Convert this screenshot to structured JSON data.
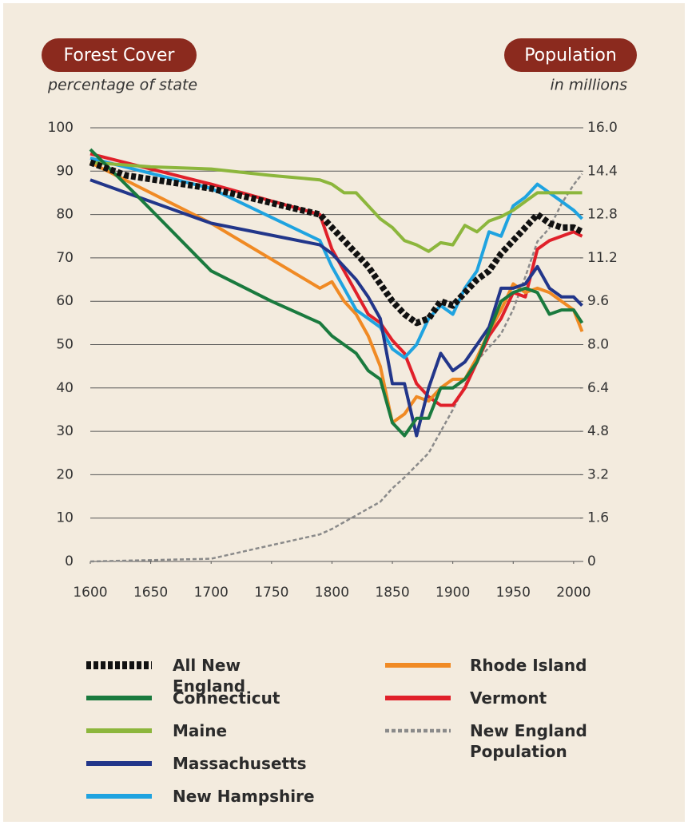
{
  "chart_data": {
    "type": "line",
    "title": "Forest Cover",
    "subtitle": "percentage of state",
    "y2_title": "Population",
    "y2_subtitle": "in millions",
    "xlim": [
      1600,
      2010
    ],
    "xticks": [
      1600,
      1650,
      1700,
      1750,
      1800,
      1850,
      1900,
      1950,
      2000
    ],
    "ylim": [
      0,
      100
    ],
    "yticks": [
      0,
      10,
      20,
      30,
      40,
      50,
      60,
      70,
      80,
      90,
      100
    ],
    "y2lim": [
      0,
      16
    ],
    "y2ticks": [
      0,
      1.6,
      3.2,
      4.8,
      6.4,
      {
        "value": 8,
        "label": "8.0"
      },
      9.6,
      11.2,
      12.8,
      14.4,
      {
        "value": 16,
        "label": "16.0"
      }
    ],
    "grid": true,
    "series": [
      {
        "name": "All New England",
        "color": "#111111",
        "dash": "dotted",
        "x": [
          1600,
          1630,
          1700,
          1790,
          1800,
          1810,
          1820,
          1830,
          1840,
          1850,
          1860,
          1870,
          1880,
          1890,
          1900,
          1910,
          1920,
          1930,
          1940,
          1950,
          1960,
          1970,
          1980,
          1990,
          2000,
          2007
        ],
        "values": [
          92,
          89,
          86,
          80,
          77,
          74,
          71,
          68,
          64,
          60,
          57,
          55,
          56,
          60,
          59,
          62,
          65,
          67,
          71,
          74,
          77,
          80,
          78,
          77,
          77,
          76
        ]
      },
      {
        "name": "Connecticut",
        "color": "#1a7a3e",
        "x": [
          1600,
          1640,
          1700,
          1750,
          1790,
          1800,
          1820,
          1830,
          1840,
          1850,
          1860,
          1870,
          1880,
          1890,
          1900,
          1910,
          1920,
          1930,
          1940,
          1950,
          1960,
          1970,
          1980,
          1990,
          2000,
          2007
        ],
        "values": [
          95,
          84,
          67,
          60,
          55,
          52,
          48,
          44,
          42,
          32,
          29,
          33,
          33,
          40,
          40,
          42,
          46,
          53,
          60,
          62,
          63,
          62,
          57,
          58,
          58,
          55
        ]
      },
      {
        "name": "Maine",
        "color": "#8cb63c",
        "x": [
          1600,
          1650,
          1700,
          1750,
          1790,
          1800,
          1810,
          1820,
          1830,
          1840,
          1850,
          1860,
          1870,
          1880,
          1890,
          1900,
          1910,
          1920,
          1930,
          1940,
          1950,
          1960,
          1970,
          1980,
          1990,
          2000,
          2007
        ],
        "values": [
          92,
          91,
          90.5,
          89,
          88,
          87,
          85,
          85,
          82,
          79,
          77,
          74,
          73,
          71.5,
          73.5,
          73,
          77.5,
          76,
          78.5,
          79.5,
          81,
          83,
          85,
          85,
          85,
          85,
          85
        ]
      },
      {
        "name": "Massachusetts",
        "color": "#22368a",
        "x": [
          1600,
          1700,
          1790,
          1800,
          1820,
          1830,
          1840,
          1850,
          1860,
          1870,
          1880,
          1890,
          1900,
          1910,
          1920,
          1930,
          1940,
          1950,
          1960,
          1970,
          1980,
          1990,
          2000,
          2007
        ],
        "values": [
          88,
          78,
          73,
          71,
          65,
          61,
          56,
          41,
          41,
          29,
          40,
          48,
          44,
          46,
          50,
          54,
          63,
          63,
          64,
          68,
          63,
          61,
          61,
          59
        ]
      },
      {
        "name": "New Hampshire",
        "color": "#1fa3e0",
        "x": [
          1600,
          1700,
          1790,
          1800,
          1810,
          1820,
          1830,
          1840,
          1850,
          1860,
          1870,
          1880,
          1890,
          1900,
          1910,
          1920,
          1930,
          1940,
          1950,
          1960,
          1970,
          1980,
          1990,
          2000,
          2007
        ],
        "values": [
          93,
          86,
          74,
          68,
          63,
          58,
          56,
          54,
          49,
          47,
          50,
          56,
          59,
          57,
          63,
          67,
          76,
          75,
          82,
          84,
          87,
          85,
          83,
          81,
          79
        ]
      },
      {
        "name": "Rhode Island",
        "color": "#f08a24",
        "x": [
          1600,
          1700,
          1790,
          1800,
          1810,
          1820,
          1830,
          1840,
          1850,
          1860,
          1870,
          1880,
          1890,
          1900,
          1910,
          1920,
          1930,
          1940,
          1950,
          1960,
          1970,
          1980,
          1990,
          2000,
          2007
        ],
        "values": [
          92,
          78,
          63,
          64.5,
          60,
          57,
          52,
          45,
          32,
          34,
          38,
          37,
          40,
          42,
          42,
          47,
          53,
          58,
          64,
          62,
          63,
          62,
          60,
          58,
          53
        ]
      },
      {
        "name": "Vermont",
        "color": "#e0202a",
        "x": [
          1600,
          1700,
          1790,
          1800,
          1810,
          1820,
          1830,
          1840,
          1850,
          1860,
          1870,
          1880,
          1890,
          1900,
          1910,
          1920,
          1930,
          1940,
          1950,
          1960,
          1970,
          1980,
          1990,
          2000,
          2007
        ],
        "values": [
          94,
          87,
          80,
          72,
          67,
          62,
          57,
          55,
          51,
          48,
          41,
          38,
          36,
          36,
          40,
          46,
          52,
          56,
          62,
          61,
          72,
          74,
          75,
          76,
          75
        ]
      },
      {
        "name": "New England Population",
        "color": "#8a8a8a",
        "dash": "dashed",
        "axis": "y2",
        "x": [
          1600,
          1700,
          1750,
          1790,
          1800,
          1820,
          1840,
          1850,
          1860,
          1880,
          1900,
          1920,
          1940,
          1950,
          1960,
          1970,
          1980,
          1990,
          2000,
          2007
        ],
        "values": [
          0,
          0.1,
          0.6,
          1.0,
          1.2,
          1.7,
          2.2,
          2.7,
          3.1,
          4.0,
          5.6,
          7.4,
          8.4,
          9.3,
          10.5,
          11.8,
          12.3,
          13.2,
          13.9,
          14.3
        ]
      }
    ]
  }
}
